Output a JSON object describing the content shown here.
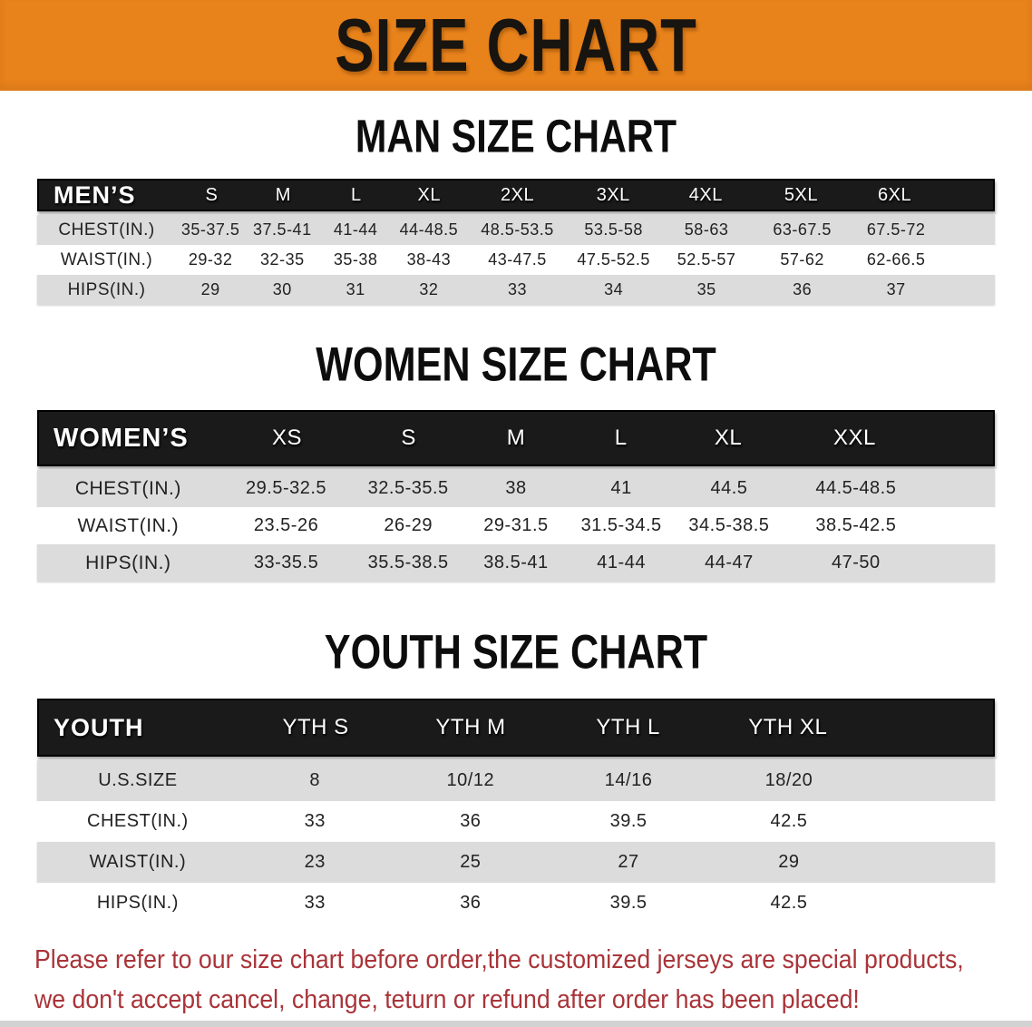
{
  "banner": {
    "title": "SIZE CHART",
    "background_color": "#E8821B"
  },
  "sections": [
    {
      "heading": "MAN SIZE CHART",
      "table": {
        "corner": "MEN’S",
        "columns": [
          "S",
          "M",
          "L",
          "XL",
          "2XL",
          "3XL",
          "4XL",
          "5XL",
          "6XL"
        ],
        "rows": [
          {
            "label": "CHEST(IN.)",
            "values": [
              "35-37.5",
              "37.5-41",
              "41-44",
              "44-48.5",
              "48.5-53.5",
              "53.5-58",
              "58-63",
              "63-67.5",
              "67.5-72"
            ]
          },
          {
            "label": "WAIST(IN.)",
            "values": [
              "29-32",
              "32-35",
              "35-38",
              "38-43",
              "43-47.5",
              "47.5-52.5",
              "52.5-57",
              "57-62",
              "62-66.5"
            ]
          },
          {
            "label": "HIPS(IN.)",
            "values": [
              "29",
              "30",
              "31",
              "32",
              "33",
              "34",
              "35",
              "36",
              "37"
            ]
          }
        ]
      }
    },
    {
      "heading": "WOMEN SIZE CHART",
      "table": {
        "corner": "WOMEN’S",
        "columns": [
          "XS",
          "S",
          "M",
          "L",
          "XL",
          "XXL"
        ],
        "rows": [
          {
            "label": "CHEST(IN.)",
            "values": [
              "29.5-32.5",
              "32.5-35.5",
              "38",
              "41",
              "44.5",
              "44.5-48.5"
            ]
          },
          {
            "label": "WAIST(IN.)",
            "values": [
              "23.5-26",
              "26-29",
              "29-31.5",
              "31.5-34.5",
              "34.5-38.5",
              "38.5-42.5"
            ]
          },
          {
            "label": "HIPS(IN.)",
            "values": [
              "33-35.5",
              "35.5-38.5",
              "38.5-41",
              "41-44",
              "44-47",
              "47-50"
            ]
          }
        ]
      }
    },
    {
      "heading": "YOUTH SIZE CHART",
      "table": {
        "corner": "YOUTH",
        "columns": [
          "YTH S",
          "YTH M",
          "YTH L",
          "YTH XL"
        ],
        "rows": [
          {
            "label": "U.S.SIZE",
            "values": [
              "8",
              "10/12",
              "14/16",
              "18/20"
            ]
          },
          {
            "label": "CHEST(IN.)",
            "values": [
              "33",
              "36",
              "39.5",
              "42.5"
            ]
          },
          {
            "label": "WAIST(IN.)",
            "values": [
              "23",
              "25",
              "27",
              "29"
            ]
          },
          {
            "label": "HIPS(IN.)",
            "values": [
              "33",
              "36",
              "39.5",
              "42.5"
            ]
          }
        ]
      }
    }
  ],
  "disclaimer": {
    "line1": "Please refer to our size chart before order,the customized jerseys are special products,",
    "line2": "we don't accept cancel, change, teturn or refund after order has been placed!",
    "text_color": "#A93439"
  },
  "colors": {
    "banner_orange": "#E8821B",
    "header_bar_black": "#1A1A1A",
    "stripe_gray": "#DCDCDC",
    "stripe_white": "#FFFFFF",
    "disclaimer_red": "#A93439"
  }
}
